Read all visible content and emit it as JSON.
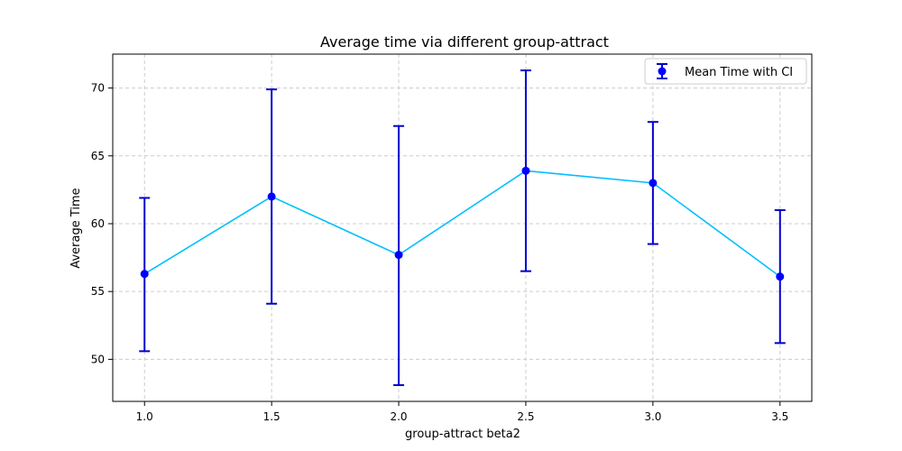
{
  "chart_data": {
    "type": "line",
    "title": "Average time via different group-attract",
    "xlabel": "group-attract beta2",
    "ylabel": "Average Time",
    "xlim": [
      0.875,
      3.625
    ],
    "ylim": [
      46.9,
      72.5
    ],
    "xticks": [
      "1.0",
      "1.5",
      "2.0",
      "2.5",
      "3.0",
      "3.5"
    ],
    "yticks": [
      "50",
      "55",
      "60",
      "65",
      "70"
    ],
    "grid": true,
    "legend_position": "top-right",
    "series": [
      {
        "name": "Mean Time with CI",
        "x": [
          1.0,
          1.5,
          2.0,
          2.5,
          3.0,
          3.5
        ],
        "y": [
          56.3,
          62.0,
          57.7,
          63.9,
          63.0,
          56.1
        ],
        "ci_lower": [
          50.6,
          54.1,
          48.1,
          56.5,
          58.5,
          51.2
        ],
        "ci_upper": [
          61.9,
          69.9,
          67.2,
          71.3,
          67.5,
          61.0
        ],
        "line_color": "#00bfff",
        "marker_color": "#0000ff",
        "errorbar_color": "#0000cd"
      }
    ]
  }
}
